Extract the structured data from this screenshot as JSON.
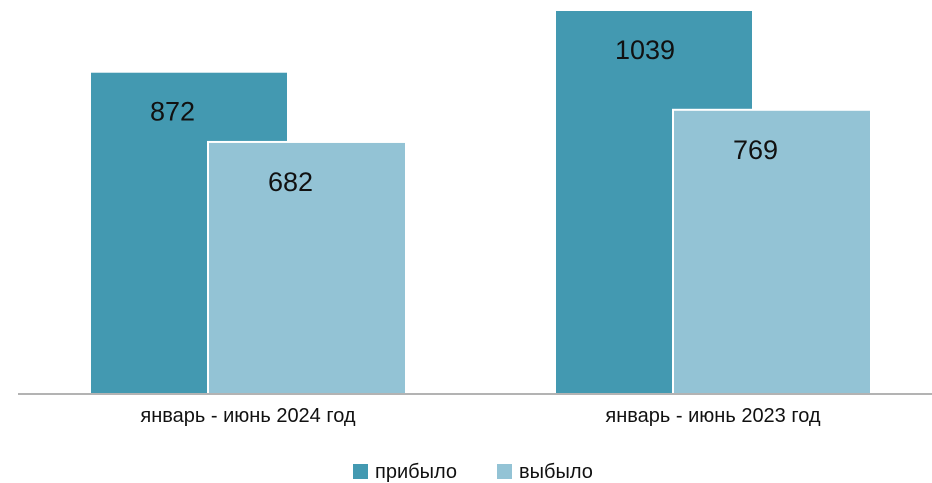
{
  "chart_data": {
    "type": "bar",
    "categories": [
      "январь - июнь 2024 год",
      "январь - июнь 2023 год"
    ],
    "series": [
      {
        "name": "прибыло",
        "values": [
          872,
          1039
        ],
        "color": "#4399b1"
      },
      {
        "name": "выбыло",
        "values": [
          682,
          769
        ],
        "color": "#93c3d5"
      }
    ],
    "ylim": [
      0,
      1100
    ],
    "grid": false,
    "legend_position": "bottom",
    "data_labels": true
  }
}
